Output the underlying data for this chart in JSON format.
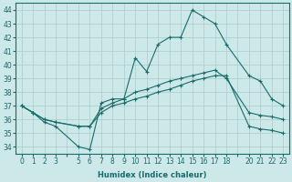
{
  "xlabel": "Humidex (Indice chaleur)",
  "background_color": "#cce8e8",
  "grid_color": "#aacccc",
  "line_color": "#1a6b6b",
  "xlim": [
    -0.5,
    23.5
  ],
  "ylim": [
    33.5,
    44.5
  ],
  "xticks": [
    0,
    1,
    2,
    3,
    5,
    6,
    7,
    8,
    9,
    10,
    11,
    12,
    13,
    14,
    15,
    16,
    17,
    18,
    20,
    21,
    22,
    23
  ],
  "yticks": [
    34,
    35,
    36,
    37,
    38,
    39,
    40,
    41,
    42,
    43,
    44
  ],
  "series1_x": [
    0,
    1,
    2,
    3,
    5,
    6,
    7,
    8,
    9,
    10,
    11,
    12,
    13,
    14,
    15,
    16,
    17,
    18,
    20,
    21,
    22,
    23
  ],
  "series1_y": [
    37.0,
    36.5,
    35.8,
    35.5,
    34.0,
    33.8,
    37.2,
    37.5,
    37.5,
    40.5,
    39.5,
    41.5,
    42.0,
    42.0,
    44.0,
    43.5,
    43.0,
    41.5,
    39.2,
    38.8,
    37.5,
    37.0
  ],
  "series2_x": [
    0,
    1,
    2,
    3,
    5,
    6,
    7,
    8,
    9,
    10,
    11,
    12,
    13,
    14,
    15,
    16,
    17,
    18,
    20,
    21,
    22,
    23
  ],
  "series2_y": [
    37.0,
    36.5,
    36.0,
    35.8,
    35.5,
    35.5,
    36.8,
    37.2,
    37.5,
    38.0,
    38.2,
    38.5,
    38.8,
    39.0,
    39.2,
    39.4,
    39.6,
    39.0,
    36.5,
    36.3,
    36.2,
    36.0
  ],
  "series3_x": [
    0,
    1,
    2,
    3,
    5,
    6,
    7,
    8,
    9,
    10,
    11,
    12,
    13,
    14,
    15,
    16,
    17,
    18,
    20,
    21,
    22,
    23
  ],
  "series3_y": [
    37.0,
    36.5,
    36.0,
    35.8,
    35.5,
    35.5,
    36.5,
    37.0,
    37.2,
    37.5,
    37.7,
    38.0,
    38.2,
    38.5,
    38.8,
    39.0,
    39.2,
    39.2,
    35.5,
    35.3,
    35.2,
    35.0
  ],
  "tick_fontsize": 5.5,
  "xlabel_fontsize": 6.0,
  "marker": "+",
  "markersize": 3.5,
  "linewidth": 0.8
}
